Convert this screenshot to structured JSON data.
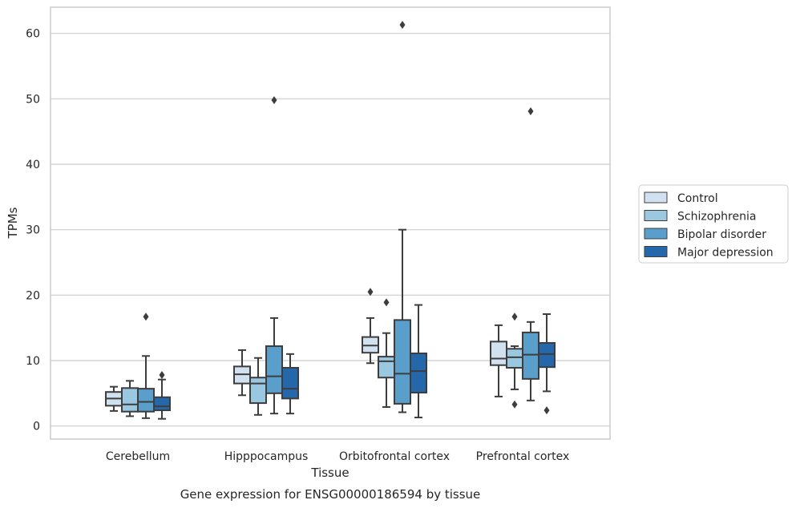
{
  "caption": "Gene expression for ENSG00000186594 by tissue",
  "chart_data": {
    "type": "box",
    "xlabel": "Tissue",
    "ylabel": "TPMs",
    "ylim": [
      -2,
      64
    ],
    "yticks": [
      0,
      10,
      20,
      30,
      40,
      50,
      60
    ],
    "grid": "horizontal",
    "legend_position": "right",
    "categories": [
      "Cerebellum",
      "Hipppocampus",
      "Orbitofrontal cortex",
      "Prefrontal cortex"
    ],
    "series": [
      {
        "name": "Control",
        "color": "#d2e1f0",
        "boxes": [
          {
            "whisker_low": 2.3,
            "q1": 3.1,
            "median": 4.2,
            "q3": 5.2,
            "whisker_high": 6.0,
            "outliers": []
          },
          {
            "whisker_low": 4.7,
            "q1": 6.5,
            "median": 7.9,
            "q3": 9.1,
            "whisker_high": 11.6,
            "outliers": []
          },
          {
            "whisker_low": 9.6,
            "q1": 11.2,
            "median": 12.3,
            "q3": 13.6,
            "whisker_high": 16.5,
            "outliers": [
              20.5
            ]
          },
          {
            "whisker_low": 4.5,
            "q1": 9.3,
            "median": 10.3,
            "q3": 12.9,
            "whisker_high": 15.4,
            "outliers": []
          }
        ]
      },
      {
        "name": "Schizophrenia",
        "color": "#9ac8e0",
        "boxes": [
          {
            "whisker_low": 1.5,
            "q1": 2.2,
            "median": 3.3,
            "q3": 5.8,
            "whisker_high": 6.9,
            "outliers": []
          },
          {
            "whisker_low": 1.7,
            "q1": 3.5,
            "median": 6.5,
            "q3": 7.4,
            "whisker_high": 10.4,
            "outliers": []
          },
          {
            "whisker_low": 2.9,
            "q1": 7.4,
            "median": 9.9,
            "q3": 10.6,
            "whisker_high": 14.2,
            "outliers": [
              18.9
            ]
          },
          {
            "whisker_low": 5.6,
            "q1": 8.9,
            "median": 10.5,
            "q3": 11.8,
            "whisker_high": 12.2,
            "outliers": [
              16.7,
              3.3
            ]
          }
        ]
      },
      {
        "name": "Bipolar disorder",
        "color": "#5a9ecc",
        "boxes": [
          {
            "whisker_low": 1.2,
            "q1": 2.2,
            "median": 3.7,
            "q3": 5.7,
            "whisker_high": 10.7,
            "outliers": [
              16.7
            ]
          },
          {
            "whisker_low": 1.9,
            "q1": 5.0,
            "median": 7.6,
            "q3": 12.2,
            "whisker_high": 16.5,
            "outliers": [
              49.8
            ]
          },
          {
            "whisker_low": 2.1,
            "q1": 3.4,
            "median": 8.0,
            "q3": 16.2,
            "whisker_high": 30.0,
            "outliers": [
              61.3
            ]
          },
          {
            "whisker_low": 3.9,
            "q1": 7.2,
            "median": 10.9,
            "q3": 14.3,
            "whisker_high": 15.9,
            "outliers": [
              48.1
            ]
          }
        ]
      },
      {
        "name": "Major depression",
        "color": "#2468ab",
        "boxes": [
          {
            "whisker_low": 1.1,
            "q1": 2.4,
            "median": 3.0,
            "q3": 4.4,
            "whisker_high": 7.1,
            "outliers": [
              7.8
            ]
          },
          {
            "whisker_low": 1.9,
            "q1": 4.2,
            "median": 5.7,
            "q3": 8.9,
            "whisker_high": 11.0,
            "outliers": []
          },
          {
            "whisker_low": 1.3,
            "q1": 5.1,
            "median": 8.4,
            "q3": 11.1,
            "whisker_high": 18.5,
            "outliers": []
          },
          {
            "whisker_low": 5.3,
            "q1": 9.0,
            "median": 11.0,
            "q3": 12.7,
            "whisker_high": 17.1,
            "outliers": [
              2.4
            ]
          }
        ]
      }
    ]
  },
  "colors": {
    "box_edge": "#3d3d3d",
    "grid": "#cccccc",
    "frame": "#cccccc",
    "text": "#262626"
  }
}
